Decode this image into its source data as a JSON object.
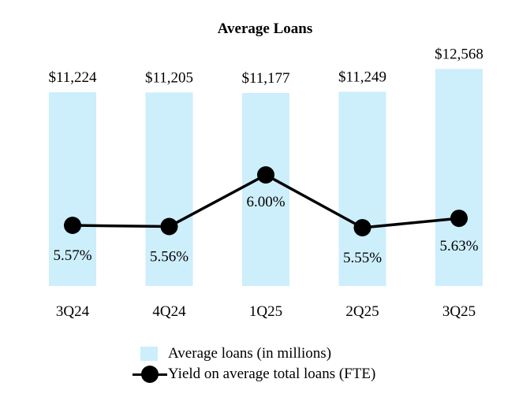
{
  "chart_data": {
    "type": "bar",
    "title": "Average Loans",
    "categories": [
      "3Q24",
      "4Q24",
      "1Q25",
      "2Q25",
      "3Q25"
    ],
    "series": [
      {
        "name": "Average loans (in millions)",
        "type": "bar",
        "values": [
          11224,
          11205,
          11177,
          11249,
          12568
        ],
        "labels": [
          "$11,224",
          "$11,205",
          "$11,177",
          "$11,249",
          "$12,568"
        ]
      },
      {
        "name": "Yield on average total loans (FTE)",
        "type": "line",
        "values": [
          5.57,
          5.56,
          6.0,
          5.55,
          5.63
        ],
        "labels": [
          "5.57%",
          "5.56%",
          "6.00%",
          "5.55%",
          "5.63%"
        ]
      }
    ],
    "legend_position": "bottom",
    "grid": false,
    "colors": {
      "bar": "#cdeefb",
      "line": "#000000"
    }
  }
}
